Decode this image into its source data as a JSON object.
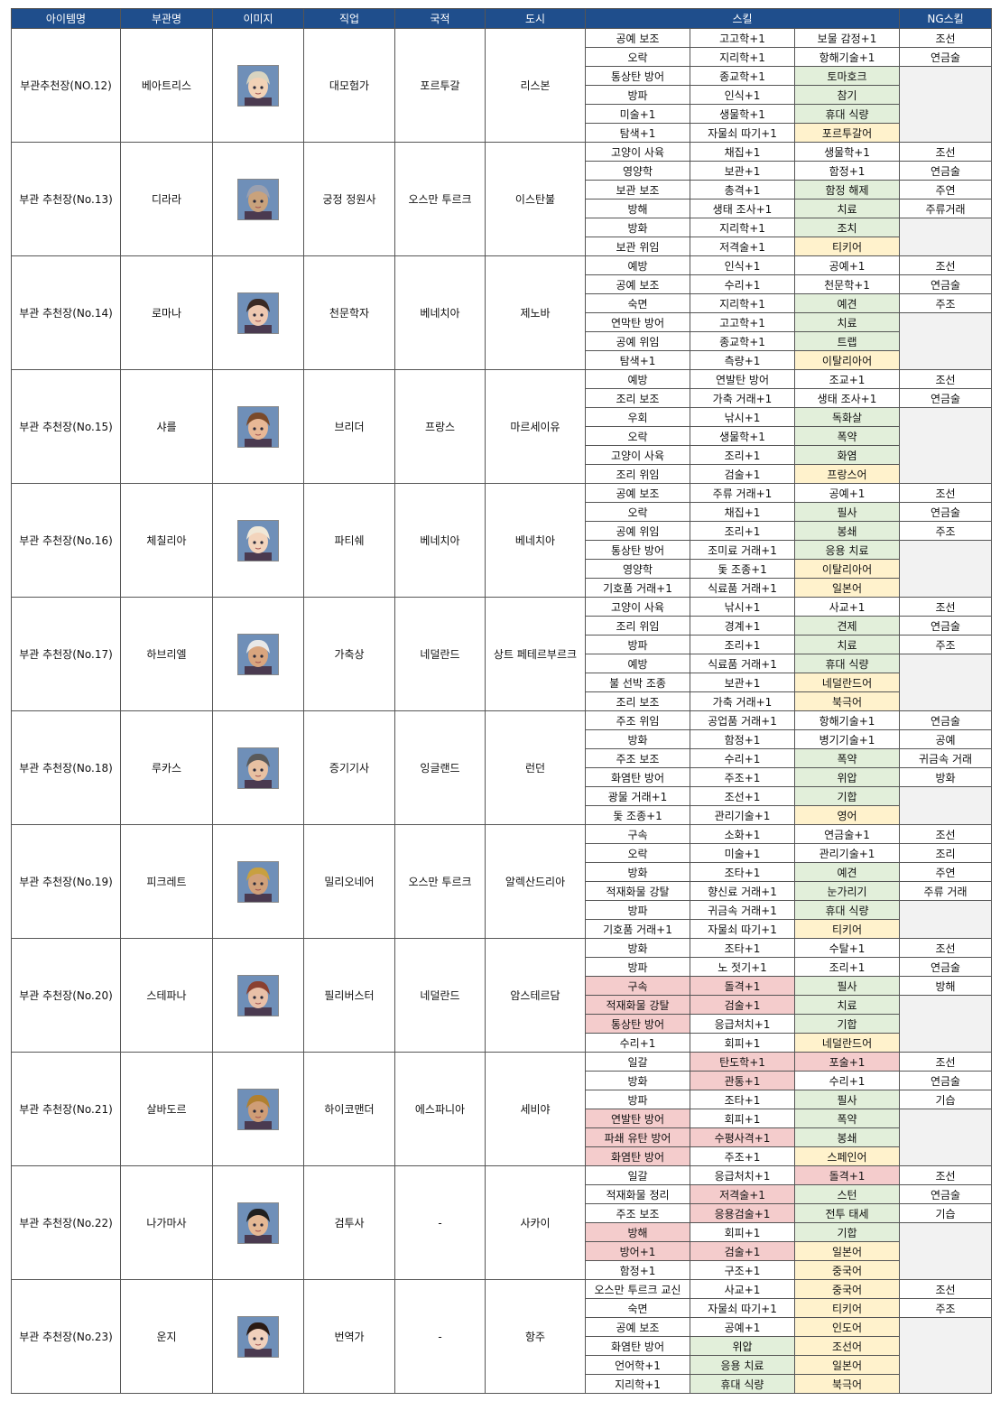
{
  "header": [
    "아이템명",
    "부관명",
    "이미지",
    "직업",
    "국적",
    "도시",
    "스킬",
    "NG스킬"
  ],
  "items": [
    {
      "item": "부관추천장(NO.12)",
      "officer": "베아트리스",
      "job": "대모험가",
      "nation": "포르투갈",
      "city": "리스본",
      "skills": [
        [
          "공예 보조",
          "고고학+1",
          "보물 감정+1"
        ],
        [
          "오락",
          "지리학+1",
          "항해기술+1"
        ],
        [
          "통상탄 방어",
          "종교학+1",
          {
            "text": "토마호크",
            "fill": "#e2efda"
          }
        ],
        [
          "방파",
          "인식+1",
          {
            "text": "참기",
            "fill": "#e2efda"
          }
        ],
        [
          "미술+1",
          "생물학+1",
          {
            "text": "휴대 식량",
            "fill": "#e2efda"
          }
        ],
        [
          "탐색+1",
          "자물쇠 따기+1",
          {
            "text": "포르투갈어",
            "fill": "#fff2cc"
          }
        ]
      ],
      "ng": [
        "조선",
        "연금술"
      ]
    },
    {
      "item": "부관 추천장(No.13)",
      "officer": "디라라",
      "job": "궁정 정원사",
      "nation": "오스만 투르크",
      "city": "이스탄불",
      "skills": [
        [
          "고양이 사육",
          "채집+1",
          "생물학+1"
        ],
        [
          "영양학",
          "보관+1",
          "함정+1"
        ],
        [
          "보관 보조",
          "총격+1",
          {
            "text": "함정 해제",
            "fill": "#e2efda"
          }
        ],
        [
          "방해",
          "생태 조사+1",
          {
            "text": "치료",
            "fill": "#e2efda"
          }
        ],
        [
          "방화",
          "지리학+1",
          {
            "text": "조치",
            "fill": "#e2efda"
          }
        ],
        [
          "보관 위임",
          "저격술+1",
          {
            "text": "티키어",
            "fill": "#fff2cc"
          }
        ]
      ],
      "ng": [
        "조선",
        "연금술",
        "주연",
        "주류거래"
      ]
    },
    {
      "item": "부관 추천장(No.14)",
      "officer": "로마나",
      "job": "천문학자",
      "nation": "베네치아",
      "city": "제노바",
      "skills": [
        [
          "예방",
          "인식+1",
          "공예+1"
        ],
        [
          "공예 보조",
          "수리+1",
          "천문학+1"
        ],
        [
          "숙면",
          "지리학+1",
          {
            "text": "예견",
            "fill": "#e2efda"
          }
        ],
        [
          "연막탄 방어",
          "고고학+1",
          {
            "text": "치료",
            "fill": "#e2efda"
          }
        ],
        [
          "공예 위임",
          "종교학+1",
          {
            "text": "트랩",
            "fill": "#e2efda"
          }
        ],
        [
          "탐색+1",
          "측량+1",
          {
            "text": "이탈리아어",
            "fill": "#fff2cc"
          }
        ]
      ],
      "ng": [
        "조선",
        "연금술",
        "주조"
      ]
    },
    {
      "item": "부관 추천장(No.15)",
      "officer": "샤를",
      "job": "브리더",
      "nation": "프랑스",
      "city": "마르세이유",
      "skills": [
        [
          "예방",
          "연발탄 방어",
          "조교+1"
        ],
        [
          "조리 보조",
          "가축 거래+1",
          "생태 조사+1"
        ],
        [
          "우회",
          "낚시+1",
          {
            "text": "독화살",
            "fill": "#e2efda"
          }
        ],
        [
          "오락",
          "생물학+1",
          {
            "text": "폭약",
            "fill": "#e2efda"
          }
        ],
        [
          "고양이 사육",
          "조리+1",
          {
            "text": "화염",
            "fill": "#e2efda"
          }
        ],
        [
          "조리 위임",
          "검술+1",
          {
            "text": "프랑스어",
            "fill": "#fff2cc"
          }
        ]
      ],
      "ng": [
        "조선",
        "연금술"
      ]
    },
    {
      "item": "부관 추천장(No.16)",
      "officer": "체칠리아",
      "job": "파티쉐",
      "nation": "베네치아",
      "city": "베네치아",
      "skills": [
        [
          "공예 보조",
          "주류 거래+1",
          "공예+1"
        ],
        [
          "오락",
          "채집+1",
          {
            "text": "필사",
            "fill": "#e2efda"
          }
        ],
        [
          "공예 위임",
          "조리+1",
          {
            "text": "봉쇄",
            "fill": "#e2efda"
          }
        ],
        [
          "통상탄 방어",
          "조미료 거래+1",
          {
            "text": "응용 치료",
            "fill": "#e2efda"
          }
        ],
        [
          "영양학",
          "돛 조종+1",
          {
            "text": "이탈리아어",
            "fill": "#fff2cc"
          }
        ],
        [
          "기호품 거래+1",
          "식료품 거래+1",
          {
            "text": "일본어",
            "fill": "#fff2cc"
          }
        ]
      ],
      "ng": [
        "조선",
        "연금술",
        "주조"
      ]
    },
    {
      "item": "부관 추천장(No.17)",
      "officer": "하브리엘",
      "job": "가축상",
      "nation": "네덜란드",
      "city": "상트 페테르부르크",
      "skills": [
        [
          "고양이 사육",
          "낚시+1",
          "사교+1"
        ],
        [
          "조리 위임",
          "경계+1",
          {
            "text": "견제",
            "fill": "#e2efda"
          }
        ],
        [
          "방파",
          "조리+1",
          {
            "text": "치료",
            "fill": "#e2efda"
          }
        ],
        [
          "예방",
          "식료품 거래+1",
          {
            "text": "휴대 식량",
            "fill": "#e2efda"
          }
        ],
        [
          "불 선박 조종",
          "보관+1",
          {
            "text": "네덜란드어",
            "fill": "#fff2cc"
          }
        ],
        [
          "조리 보조",
          "가축 거래+1",
          {
            "text": "북극어",
            "fill": "#fff2cc"
          }
        ]
      ],
      "ng": [
        "조선",
        "연금술",
        "주조"
      ]
    },
    {
      "item": "부관 추천장(No.18)",
      "officer": "루카스",
      "job": "증기기사",
      "nation": "잉글랜드",
      "city": "런던",
      "skills": [
        [
          "주조 위임",
          "공업품 거래+1",
          "항해기술+1"
        ],
        [
          "방화",
          "함정+1",
          "병기기술+1"
        ],
        [
          "주조 보조",
          "수리+1",
          {
            "text": "폭약",
            "fill": "#e2efda"
          }
        ],
        [
          "화염탄 방어",
          "주조+1",
          {
            "text": "위압",
            "fill": "#e2efda"
          }
        ],
        [
          "광물 거래+1",
          "조선+1",
          {
            "text": "기합",
            "fill": "#e2efda"
          }
        ],
        [
          "돛 조종+1",
          "관리기술+1",
          {
            "text": "영어",
            "fill": "#fff2cc"
          }
        ]
      ],
      "ng": [
        "연금술",
        "공예",
        "귀금속 거래",
        "방화"
      ]
    },
    {
      "item": "부관 추천장(No.19)",
      "officer": "피크레트",
      "job": "밀리오네어",
      "nation": "오스만 투르크",
      "city": "알렉산드리아",
      "skills": [
        [
          "구속",
          "소화+1",
          "연금술+1"
        ],
        [
          "오락",
          "미술+1",
          "관리기술+1"
        ],
        [
          "방화",
          "조타+1",
          {
            "text": "예견",
            "fill": "#e2efda"
          }
        ],
        [
          "적재화물 강탈",
          "향신료 거래+1",
          {
            "text": "눈가리기",
            "fill": "#e2efda"
          }
        ],
        [
          "방파",
          "귀금속 거래+1",
          {
            "text": "휴대 식량",
            "fill": "#e2efda"
          }
        ],
        [
          "기호품 거래+1",
          "자물쇠 따기+1",
          {
            "text": "티키어",
            "fill": "#fff2cc"
          }
        ]
      ],
      "ng": [
        "조선",
        "조리",
        "주연",
        "주류 거래"
      ]
    },
    {
      "item": "부관 추천장(No.20)",
      "officer": "스테파나",
      "job": "필리버스터",
      "nation": "네덜란드",
      "city": "암스테르담",
      "skills": [
        [
          "방화",
          "조타+1",
          "수탈+1"
        ],
        [
          "방파",
          "노 젓기+1",
          "조리+1"
        ],
        [
          {
            "text": "구속",
            "fill": "#f4cccc"
          },
          {
            "text": "돌격+1",
            "fill": "#f4cccc"
          },
          {
            "text": "필사",
            "fill": "#e2efda"
          }
        ],
        [
          {
            "text": "적재화물 강탈",
            "fill": "#f4cccc"
          },
          {
            "text": "검술+1",
            "fill": "#f4cccc"
          },
          {
            "text": "치료",
            "fill": "#e2efda"
          }
        ],
        [
          {
            "text": "통상탄 방어",
            "fill": "#f4cccc"
          },
          "응급처치+1",
          {
            "text": "기합",
            "fill": "#e2efda"
          }
        ],
        [
          "수리+1",
          "회피+1",
          {
            "text": "네덜란드어",
            "fill": "#fff2cc"
          }
        ]
      ],
      "ng": [
        "조선",
        "연금술",
        "방해"
      ]
    },
    {
      "item": "부관 추천장(No.21)",
      "officer": "살바도르",
      "job": "하이코맨더",
      "nation": "에스파니아",
      "city": "세비야",
      "skills": [
        [
          "일갈",
          {
            "text": "탄도학+1",
            "fill": "#f4cccc"
          },
          {
            "text": "포술+1",
            "fill": "#f4cccc"
          }
        ],
        [
          "방화",
          {
            "text": "관통+1",
            "fill": "#f4cccc"
          },
          "수리+1"
        ],
        [
          "방파",
          "조타+1",
          {
            "text": "필사",
            "fill": "#e2efda"
          }
        ],
        [
          {
            "text": "연발탄 방어",
            "fill": "#f4cccc"
          },
          "회피+1",
          {
            "text": "폭약",
            "fill": "#e2efda"
          }
        ],
        [
          {
            "text": "파쇄 유탄 방어",
            "fill": "#f4cccc"
          },
          {
            "text": "수평사격+1",
            "fill": "#f4cccc"
          },
          {
            "text": "봉쇄",
            "fill": "#e2efda"
          }
        ],
        [
          {
            "text": "화염탄 방어",
            "fill": "#f4cccc"
          },
          "주조+1",
          {
            "text": "스페인어",
            "fill": "#fff2cc"
          }
        ]
      ],
      "ng": [
        "조선",
        "연금술",
        "기습"
      ]
    },
    {
      "item": "부관 추천장(No.22)",
      "officer": "나가마사",
      "job": "검투사",
      "nation": "-",
      "city": "사카이",
      "skills": [
        [
          "일갈",
          "응급처치+1",
          {
            "text": "돌격+1",
            "fill": "#f4cccc"
          }
        ],
        [
          "적재화물 정리",
          {
            "text": "저격술+1",
            "fill": "#f4cccc"
          },
          {
            "text": "스턴",
            "fill": "#e2efda"
          }
        ],
        [
          "주조 보조",
          {
            "text": "응용검술+1",
            "fill": "#f4cccc"
          },
          {
            "text": "전투 태세",
            "fill": "#e2efda"
          }
        ],
        [
          {
            "text": "방해",
            "fill": "#f4cccc"
          },
          "회피+1",
          {
            "text": "기합",
            "fill": "#e2efda"
          }
        ],
        [
          {
            "text": "방어+1",
            "fill": "#f4cccc"
          },
          {
            "text": "검술+1",
            "fill": "#f4cccc"
          },
          {
            "text": "일본어",
            "fill": "#fff2cc"
          }
        ],
        [
          "함정+1",
          "구조+1",
          {
            "text": "중국어",
            "fill": "#fff2cc"
          }
        ]
      ],
      "ng": [
        "조선",
        "연금술",
        "기습"
      ]
    },
    {
      "item": "부관 추천장(No.23)",
      "officer": "운지",
      "job": "번역가",
      "nation": "-",
      "city": "항주",
      "skills": [
        [
          "오스만 투르크 교신",
          "사교+1",
          {
            "text": "중국어",
            "fill": "#fff2cc"
          }
        ],
        [
          "숙면",
          "자물쇠 따기+1",
          {
            "text": "티키어",
            "fill": "#fff2cc"
          }
        ],
        [
          "공예 보조",
          "공예+1",
          {
            "text": "인도어",
            "fill": "#fff2cc"
          }
        ],
        [
          "화염탄 방어",
          {
            "text": "위압",
            "fill": "#e2efda"
          },
          {
            "text": "조선어",
            "fill": "#fff2cc"
          }
        ],
        [
          "언어학+1",
          {
            "text": "응용 치료",
            "fill": "#e2efda"
          },
          {
            "text": "일본어",
            "fill": "#fff2cc"
          }
        ],
        [
          "지리학+1",
          {
            "text": "휴대 식량",
            "fill": "#e2efda"
          },
          {
            "text": "북극어",
            "fill": "#fff2cc"
          }
        ]
      ],
      "ng": [
        "조선",
        "주조"
      ]
    }
  ]
}
